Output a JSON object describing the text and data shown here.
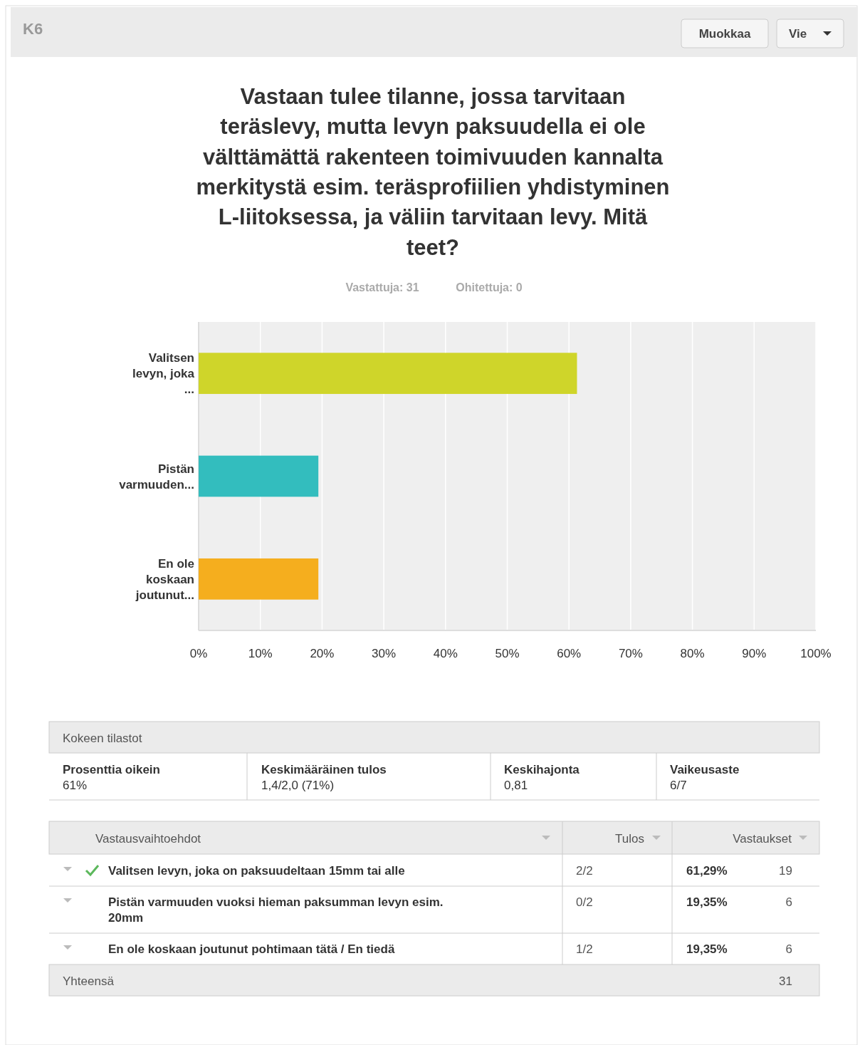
{
  "chart_data": {
    "type": "bar",
    "orientation": "horizontal",
    "title": "Vastaan tulee tilanne, jossa tarvitaan teräslevy, mutta levyn paksuudella ei ole välttämättä rakenteen toimivuuden kannalta merkitystä esim. teräsprofiilien yhdistyminen L-liitoksessa, ja väliin tarvitaan levy. Mitä teet?",
    "categories": [
      "Valitsen levyn, joka ...",
      "Pistän varmuuden...",
      "En ole koskaan joutunut..."
    ],
    "values": [
      61.3,
      19.4,
      19.4
    ],
    "colors": [
      "#cfd52a",
      "#33bdbe",
      "#f5ae1e"
    ],
    "xlim": [
      0,
      100
    ],
    "xticks": [
      {
        "value": 0,
        "label": "0%"
      },
      {
        "value": 10,
        "label": "10%"
      },
      {
        "value": 20,
        "label": "20%"
      },
      {
        "value": 30,
        "label": "30%"
      },
      {
        "value": 40,
        "label": "40%"
      },
      {
        "value": 50,
        "label": "50%"
      },
      {
        "value": 60,
        "label": "60%"
      },
      {
        "value": 70,
        "label": "70%"
      },
      {
        "value": 80,
        "label": "80%"
      },
      {
        "value": 90,
        "label": "90%"
      },
      {
        "value": 100,
        "label": "100%"
      }
    ],
    "grid": "x",
    "annotations": [
      "K6",
      "Muokkaa",
      "Vie",
      "Vastattuja: 31",
      "Ohitettuja: 0",
      "Kokeen tilastot",
      "Prosenttia oikein",
      "61%",
      "Keskimääräinen tulos",
      "1,4/2,0 (71%)",
      "Keskihajonta",
      "0,81",
      "Vaikeusaste",
      "6/7",
      "Vastausvaihtoehdot",
      "Tulos",
      "Vastaukset",
      "Valitsen levyn, joka on paksuudeltaan 15mm tai alle",
      "2/2",
      "19",
      "Pistän varmuuden vuoksi hieman paksumman levyn esim. 20mm",
      "0/2",
      "6",
      "En ole koskaan joutunut pohtimaan tätä / En tiedä",
      "1/2",
      "6",
      "Yhteensä",
      "31",
      "61,29%",
      "19,35%",
      "19,35%"
    ]
  }
}
